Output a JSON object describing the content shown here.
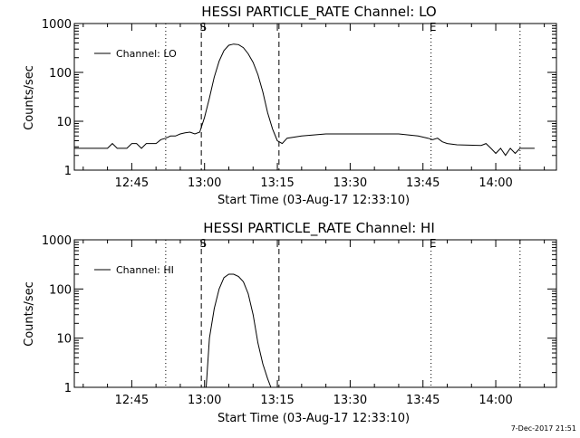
{
  "footer": "7-Dec-2017 21:51",
  "chart_data": [
    {
      "type": "line",
      "title": "HESSI PARTICLE_RATE Channel: LO",
      "xlabel": "Start Time (03-Aug-17 12:33:10)",
      "ylabel": "Counts/sec",
      "yscale": "log",
      "ylim": [
        1,
        1000
      ],
      "xlim": [
        "12:33:10",
        "14:12:30"
      ],
      "xticks": [
        "12:45",
        "13:00",
        "13:15",
        "13:30",
        "13:45",
        "14:00"
      ],
      "yticks": [
        "1",
        "10",
        "100",
        "1000"
      ],
      "legend": "top-left",
      "series": [
        {
          "name": "Channel: LO",
          "x": [
            "12:33:10",
            "12:40:00",
            "12:41:00",
            "12:42:00",
            "12:44:00",
            "12:45:00",
            "12:46:00",
            "12:47:00",
            "12:48:00",
            "12:49:00",
            "12:50:00",
            "12:51:00",
            "12:52:00",
            "12:53:00",
            "12:54:00",
            "12:55:00",
            "12:56:00",
            "12:57:00",
            "12:58:00",
            "12:59:00",
            "13:00:00",
            "13:01:00",
            "13:02:00",
            "13:03:00",
            "13:04:00",
            "13:05:00",
            "13:06:00",
            "13:07:00",
            "13:08:00",
            "13:09:00",
            "13:10:00",
            "13:11:00",
            "13:12:00",
            "13:13:00",
            "13:14:00",
            "13:15:00",
            "13:16:00",
            "13:17:00",
            "13:20:00",
            "13:25:00",
            "13:30:00",
            "13:35:00",
            "13:40:00",
            "13:44:00",
            "13:46:00",
            "13:47:00",
            "13:48:00",
            "13:49:00",
            "13:50:00",
            "13:52:00",
            "13:57:00",
            "13:58:00",
            "13:59:00",
            "14:00:00",
            "14:01:00",
            "14:02:00",
            "14:03:00",
            "14:04:00",
            "14:05:00",
            "14:06:00",
            "14:07:00",
            "14:08:00"
          ],
          "y": [
            2.8,
            2.8,
            3.5,
            2.8,
            2.8,
            3.5,
            3.5,
            2.8,
            3.5,
            3.5,
            3.5,
            4.2,
            4.5,
            5.0,
            5.0,
            5.5,
            5.8,
            6.0,
            5.5,
            6.0,
            12,
            30,
            80,
            170,
            280,
            360,
            380,
            370,
            320,
            240,
            160,
            90,
            40,
            15,
            7,
            4,
            3.5,
            4.5,
            5,
            5.5,
            5.5,
            5.5,
            5.5,
            5.0,
            4.5,
            4.2,
            4.5,
            3.8,
            3.5,
            3.3,
            3.2,
            3.5,
            2.8,
            2.2,
            2.8,
            2.0,
            2.8,
            2.2,
            2.8,
            2.8,
            2.8,
            2.8
          ]
        }
      ],
      "vlines": [
        {
          "time": "12:52:00",
          "style": "dotted"
        },
        {
          "time": "12:59:20",
          "style": "dashed",
          "label": "S"
        },
        {
          "time": "13:15:20",
          "style": "dashed"
        },
        {
          "time": "13:46:40",
          "style": "dotted",
          "label": "E"
        },
        {
          "time": "14:05:00",
          "style": "dotted"
        }
      ]
    },
    {
      "type": "line",
      "title": "HESSI PARTICLE_RATE Channel: HI",
      "xlabel": "Start Time (03-Aug-17 12:33:10)",
      "ylabel": "Counts/sec",
      "yscale": "log",
      "ylim": [
        1,
        1000
      ],
      "xlim": [
        "12:33:10",
        "14:12:30"
      ],
      "xticks": [
        "12:45",
        "13:00",
        "13:15",
        "13:30",
        "13:45",
        "14:00"
      ],
      "yticks": [
        "1",
        "10",
        "100",
        "1000"
      ],
      "legend": "top-left",
      "series": [
        {
          "name": "Channel: HI",
          "x": [
            "13:00:20",
            "13:01:00",
            "13:02:00",
            "13:03:00",
            "13:04:00",
            "13:05:00",
            "13:06:00",
            "13:07:00",
            "13:08:00",
            "13:09:00",
            "13:10:00",
            "13:11:00",
            "13:12:00",
            "13:13:00",
            "13:13:40"
          ],
          "y": [
            1.0,
            10,
            40,
            100,
            170,
            200,
            200,
            180,
            140,
            80,
            30,
            8,
            3,
            1.5,
            1.0
          ]
        }
      ],
      "vlines": [
        {
          "time": "12:52:00",
          "style": "dotted"
        },
        {
          "time": "12:59:20",
          "style": "dashed",
          "label": "S"
        },
        {
          "time": "13:15:20",
          "style": "dashed"
        },
        {
          "time": "13:46:40",
          "style": "dotted",
          "label": "E"
        },
        {
          "time": "14:05:00",
          "style": "dotted"
        }
      ]
    }
  ]
}
